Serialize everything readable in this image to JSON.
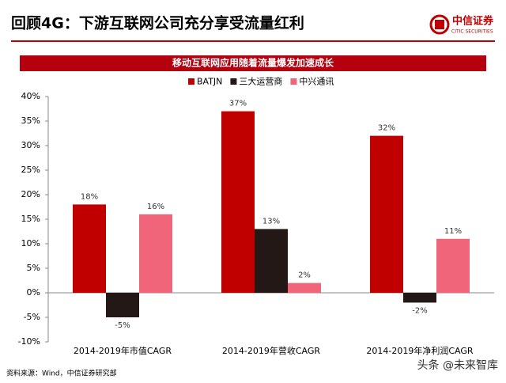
{
  "page_title": "回顾4G：下游互联网公司充分享受流量红利",
  "logo": {
    "name": "中信证券",
    "sub": "CITIC SECURITIES"
  },
  "chart_data": {
    "type": "bar",
    "title": "移动互联网应用随着流量爆发加速成长",
    "categories": [
      "2014-2019年市值CAGR",
      "2014-2019年营收CAGR",
      "2014-2019年净利润CAGR"
    ],
    "series": [
      {
        "name": "BATJN",
        "color": "#c00000",
        "values": [
          18,
          37,
          32
        ],
        "value_labels": [
          "18%",
          "37%",
          "32%"
        ]
      },
      {
        "name": "三大运营商",
        "color": "#231815",
        "values": [
          -5,
          13,
          -2
        ],
        "value_labels": [
          "-5%",
          "13%",
          "-2%"
        ]
      },
      {
        "name": "中兴通讯",
        "color": "#f0657a",
        "values": [
          16,
          2,
          11
        ],
        "value_labels": [
          "16%",
          "2%",
          "11%"
        ]
      }
    ],
    "ylim": [
      -10,
      40
    ],
    "yticks": [
      {
        "value": -10,
        "label": "-10%"
      },
      {
        "value": -5,
        "label": "-5%"
      },
      {
        "value": 0,
        "label": "0%"
      },
      {
        "value": 5,
        "label": "5%"
      },
      {
        "value": 10,
        "label": "10%"
      },
      {
        "value": 15,
        "label": "15%"
      },
      {
        "value": 20,
        "label": "20%"
      },
      {
        "value": 25,
        "label": "25%"
      },
      {
        "value": 30,
        "label": "30%"
      },
      {
        "value": 35,
        "label": "35%"
      },
      {
        "value": 40,
        "label": "40%"
      }
    ],
    "legend": "top"
  },
  "source": "资料来源：Wind，中信证券研究部",
  "watermark": "头条 @未来智库"
}
